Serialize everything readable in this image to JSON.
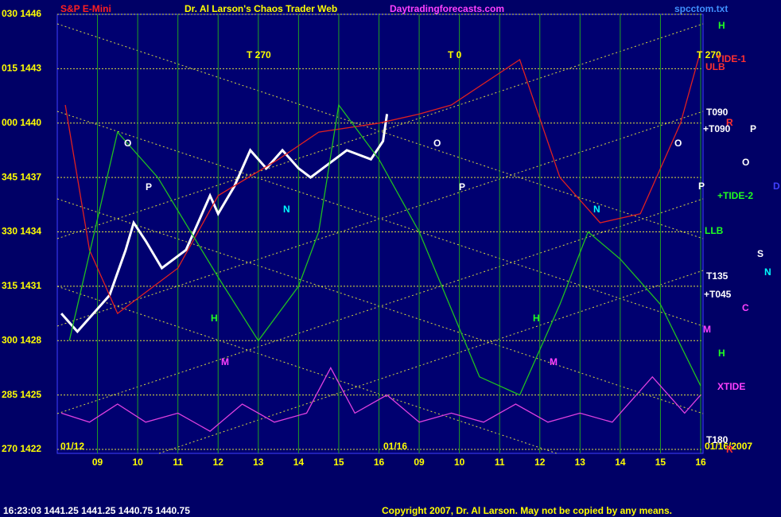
{
  "chart_data": {
    "type": "line",
    "symbol": "S&P E-Mini",
    "title": "Dr. Al Larson's Chaos Trader Web",
    "site": "Daytradingforecasts.com",
    "file": "spcctom.txt",
    "status": "16:23:03  1441.25  1441.25  1440.75  1440.75",
    "copyright": "Copyright 2007, Dr. Al Larson. May not be copied by any means.",
    "dates": [
      "01/12",
      "01/16",
      "01/16/2007"
    ],
    "xlim": [
      0,
      16
    ],
    "xticks": [
      {
        "value": 1,
        "label": "09"
      },
      {
        "value": 2,
        "label": "10"
      },
      {
        "value": 3,
        "label": "11"
      },
      {
        "value": 4,
        "label": "12"
      },
      {
        "value": 5,
        "label": "13"
      },
      {
        "value": 6,
        "label": "14"
      },
      {
        "value": 7,
        "label": "15"
      },
      {
        "value": 8,
        "label": "16"
      },
      {
        "value": 9,
        "label": "09"
      },
      {
        "value": 10,
        "label": "10"
      },
      {
        "value": 11,
        "label": "11"
      },
      {
        "value": 12,
        "label": "12"
      },
      {
        "value": 13,
        "label": "13"
      },
      {
        "value": 14,
        "label": "14"
      },
      {
        "value": 15,
        "label": "15"
      },
      {
        "value": 16,
        "label": "16"
      }
    ],
    "ylim": [
      1422,
      1446
    ],
    "yticks": [
      {
        "value": 1446,
        "label": "030 1446"
      },
      {
        "value": 1443,
        "label": "015 1443"
      },
      {
        "value": 1440,
        "label": "000 1440"
      },
      {
        "value": 1437,
        "label": "345 1437"
      },
      {
        "value": 1434,
        "label": "330 1434"
      },
      {
        "value": 1431,
        "label": "315 1431"
      },
      {
        "value": 1428,
        "label": "300 1428"
      },
      {
        "value": 1425,
        "label": "285 1425"
      },
      {
        "value": 1422,
        "label": "270 1422"
      }
    ],
    "grid": true,
    "series": [
      {
        "color": "#ffffff",
        "x": [
          0.1,
          0.5,
          1.3,
          1.7,
          1.9,
          2.2,
          2.6,
          3.2,
          3.5,
          3.8,
          4.0,
          4.4,
          4.8,
          5.2,
          5.6,
          6.0,
          6.3,
          6.6,
          7.2,
          7.8,
          8.1,
          8.2
        ],
        "values": [
          1429.5,
          1428.5,
          1430.5,
          1433,
          1434.5,
          1433.5,
          1432,
          1433,
          1434.5,
          1436,
          1435,
          1436.5,
          1438.5,
          1437.5,
          1438.5,
          1437.5,
          1437,
          1437.5,
          1438.5,
          1438,
          1439,
          1440.5
        ]
      },
      {
        "color": "#e02020",
        "x": [
          0.2,
          0.8,
          1.5,
          3,
          4,
          5.5,
          6.5,
          8,
          9,
          9.8,
          11.5,
          12.5,
          13.5,
          14.5,
          15.5,
          16
        ],
        "values": [
          1441,
          1433,
          1429.5,
          1432,
          1436,
          1438,
          1439.5,
          1440,
          1440.5,
          1441,
          1443.5,
          1437,
          1434.5,
          1435,
          1440,
          1444
        ]
      },
      {
        "color": "#20c020",
        "x": [
          0.3,
          1.5,
          2.5,
          4,
          5,
          6,
          6.5,
          7,
          8,
          9,
          10.5,
          11.5,
          12.5,
          13.2,
          14,
          15,
          16
        ],
        "values": [
          1428,
          1439.5,
          1437,
          1431.5,
          1428,
          1431,
          1434,
          1441,
          1438,
          1434,
          1426,
          1425,
          1430,
          1434,
          1432.5,
          1430,
          1425.5
        ]
      },
      {
        "color": "#e040e0",
        "x": [
          0.1,
          0.8,
          1.5,
          2.2,
          3,
          3.8,
          4.6,
          5.4,
          6.2,
          6.8,
          7.4,
          8.2,
          9,
          9.8,
          10.6,
          11.4,
          12.2,
          13,
          13.8,
          14.8,
          15.6,
          16
        ],
        "values": [
          1424,
          1423.5,
          1424.5,
          1423.5,
          1424,
          1423,
          1424.5,
          1423.5,
          1424,
          1426.5,
          1424,
          1425,
          1423.5,
          1424,
          1423.5,
          1424.5,
          1423.5,
          1424,
          1423.5,
          1426,
          1424,
          1425
        ]
      }
    ],
    "markers": [
      "T 270",
      "T 0",
      "T 270",
      "O",
      "P",
      "N",
      "H",
      "M",
      "O",
      "P",
      "N",
      "H",
      "M",
      "O"
    ],
    "side_labels": [
      "H",
      "TIDE-1",
      "ULB",
      "T090",
      "R",
      "+T090",
      "P",
      "O",
      "P",
      "+TIDE-2",
      "D",
      "LLB",
      "S",
      "N",
      "T135",
      "+T045",
      "C",
      "M",
      "H",
      "XTIDE",
      "T180",
      "R"
    ]
  }
}
